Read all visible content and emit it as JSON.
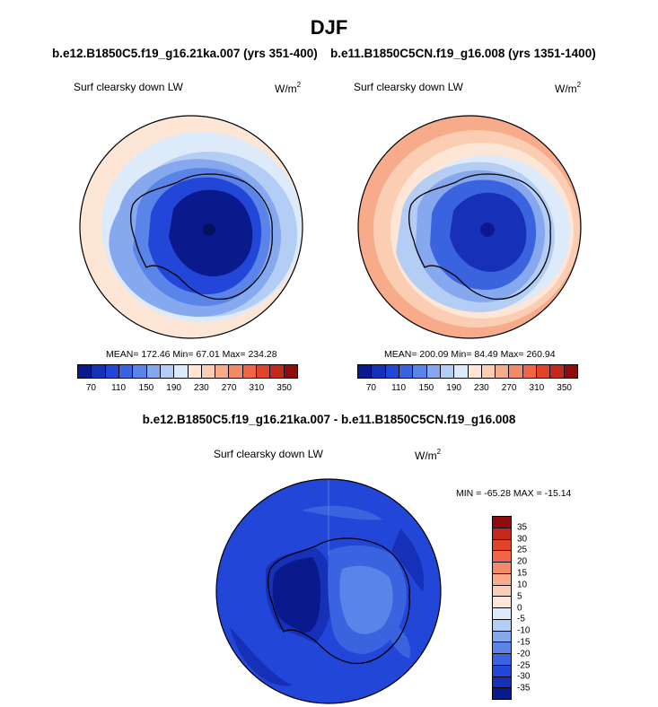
{
  "title": "DJF",
  "case_a": "b.e12.B1850C5.f19_g16.21ka.007 (yrs 351-400)",
  "case_b": "b.e11.B1850C5CN.f19_g16.008 (yrs 1351-1400)",
  "diff_title": "b.e12.B1850C5.f19_g16.21ka.007 - b.e11.B1850C5CN.f19_g16.008",
  "panels": [
    {
      "field": "Surf clearsky down LW",
      "units_base": "W/m",
      "units_exp": "2",
      "stats": "MEAN= 172.46  Min=  67.01  Max= 234.28"
    },
    {
      "field": "Surf clearsky down LW",
      "units_base": "W/m",
      "units_exp": "2",
      "stats": "MEAN= 200.09  Min=  84.49  Max= 260.94"
    },
    {
      "field": "Surf clearsky down LW",
      "units_base": "W/m",
      "units_exp": "2",
      "stats": "MIN = -65.28 MAX = -15.14"
    }
  ],
  "abs_colorbar": {
    "colors": [
      "#0a1a8c",
      "#1630b8",
      "#2247d8",
      "#3a63e0",
      "#5a84e8",
      "#86a8ef",
      "#b4cdf5",
      "#dceaf9",
      "#fde6d6",
      "#fbcdb3",
      "#f7ab8a",
      "#f48a66",
      "#ee6645",
      "#e0452c",
      "#c4281a",
      "#8e0c0c"
    ],
    "labels": [
      "70",
      "110",
      "150",
      "190",
      "230",
      "270",
      "310",
      "350"
    ]
  },
  "diff_colorbar": {
    "colors": [
      "#8e0c0c",
      "#c4281a",
      "#e0452c",
      "#ee6645",
      "#f48a66",
      "#f7ab8a",
      "#fbcdb3",
      "#fde6d6",
      "#dceaf9",
      "#b4cdf5",
      "#86a8ef",
      "#5a84e8",
      "#3a63e0",
      "#2247d8",
      "#1630b8",
      "#0a1a8c"
    ],
    "labels": [
      "35",
      "30",
      "25",
      "20",
      "15",
      "10",
      "5",
      "0",
      "-5",
      "-10",
      "-15",
      "-20",
      "-25",
      "-30",
      "-35"
    ]
  }
}
